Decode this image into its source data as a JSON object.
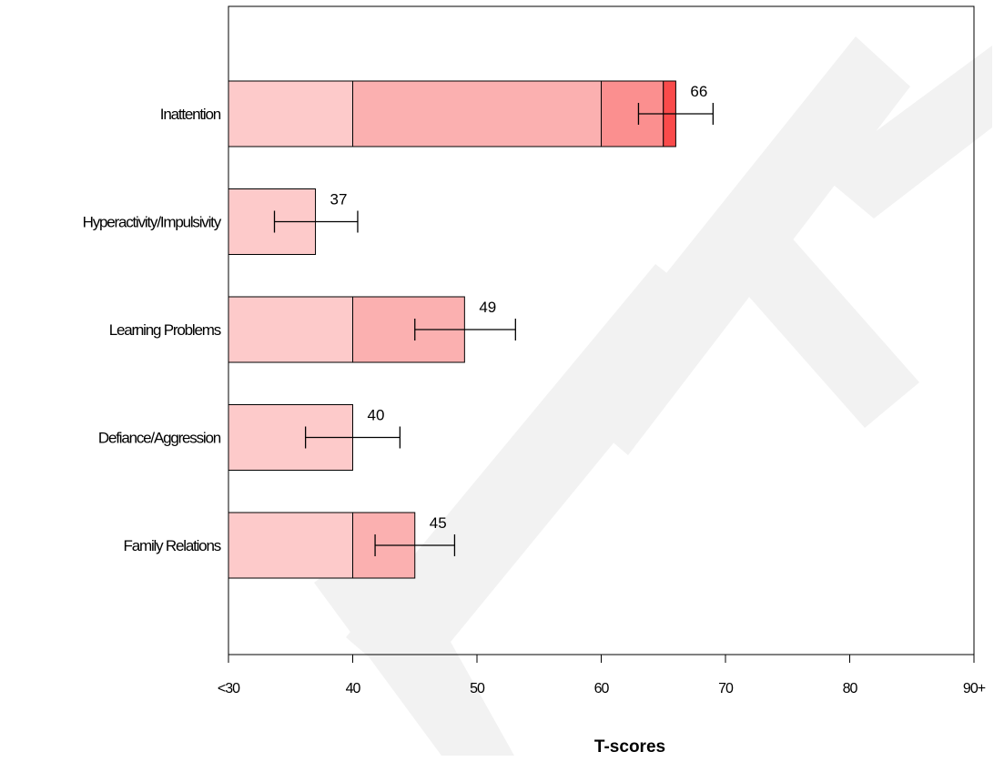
{
  "chart_data": {
    "type": "bar",
    "orientation": "horizontal",
    "stacked_by_bands": true,
    "categories": [
      "Inattention",
      "Hyperactivity/Impulsivity",
      "Learning Problems",
      "Defiance/Aggression",
      "Family Relations"
    ],
    "values": [
      66,
      37,
      49,
      40,
      45
    ],
    "value_labels": [
      "66",
      "37",
      "49",
      "40",
      "45"
    ],
    "error_bars": [
      {
        "low": 63,
        "high": 69
      },
      {
        "low": 33.7,
        "high": 40.4
      },
      {
        "low": 45,
        "high": 53.1
      },
      {
        "low": 36.2,
        "high": 43.8
      },
      {
        "low": 41.8,
        "high": 48.2
      }
    ],
    "bands": [
      {
        "from": 30,
        "to": 40,
        "color": "#fdcaca"
      },
      {
        "from": 40,
        "to": 60,
        "color": "#fbb0b0"
      },
      {
        "from": 60,
        "to": 65,
        "color": "#fb8f8f"
      },
      {
        "from": 65,
        "to": 70,
        "color": "#f94b4b"
      },
      {
        "from": 70,
        "to": 90,
        "color": "#e11a1a"
      }
    ],
    "xlim": [
      30,
      90
    ],
    "x_ticks": [
      {
        "value": 30,
        "label": "<30"
      },
      {
        "value": 40,
        "label": "40"
      },
      {
        "value": 50,
        "label": "50"
      },
      {
        "value": 60,
        "label": "60"
      },
      {
        "value": 70,
        "label": "70"
      },
      {
        "value": 80,
        "label": "80"
      },
      {
        "value": 90,
        "label": "90+"
      }
    ],
    "xlabel": "T-scores",
    "ylabel": "",
    "title": "",
    "grid": false
  },
  "watermark": "SAMPLE"
}
